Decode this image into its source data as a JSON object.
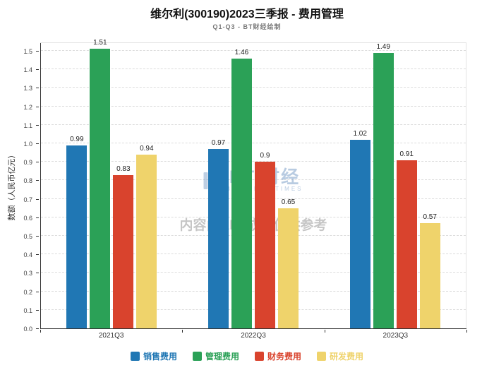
{
  "title": "维尔利(300190)2023三季报 - 费用管理",
  "subtitle": "Q1-Q3 - BT财经绘制",
  "watermark": {
    "brand": "BT 财经",
    "brand_sub": "BUSINESS TIMES",
    "disclaimer": "内容由AI生成，仅供参考"
  },
  "chart_data": {
    "type": "bar",
    "title": "维尔利(300190)2023三季报 - 费用管理",
    "subtitle": "Q1-Q3 - BT财经绘制",
    "categories": [
      "2021Q3",
      "2022Q3",
      "2023Q3"
    ],
    "series": [
      {
        "name": "销售费用",
        "color": "#2077B4",
        "values": [
          0.99,
          0.97,
          1.02
        ]
      },
      {
        "name": "管理费用",
        "color": "#2BA157",
        "values": [
          1.51,
          1.46,
          1.49
        ]
      },
      {
        "name": "财务费用",
        "color": "#D9432D",
        "values": [
          0.83,
          0.9,
          0.91
        ]
      },
      {
        "name": "研发费用",
        "color": "#EFD36B",
        "values": [
          0.94,
          0.65,
          0.57
        ]
      }
    ],
    "xlabel": "",
    "ylabel": "数额（人民币亿元）",
    "ylim": [
      0,
      1.55
    ],
    "yticks": [
      0.0,
      0.1,
      0.2,
      0.3,
      0.4,
      0.5,
      0.6,
      0.7,
      0.8,
      0.9,
      1.0,
      1.1,
      1.2,
      1.3,
      1.4,
      1.5
    ],
    "grid": true,
    "legend_position": "bottom"
  }
}
